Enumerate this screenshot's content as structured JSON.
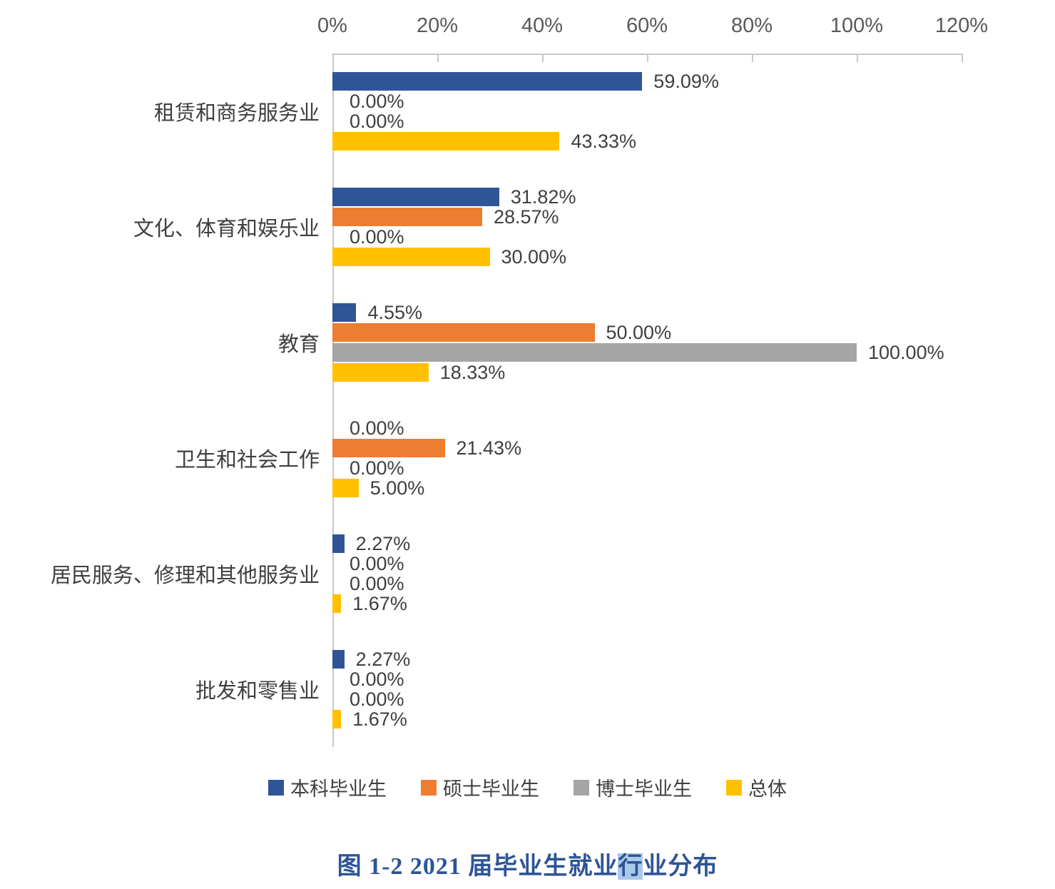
{
  "chart_data": {
    "type": "bar",
    "orientation": "horizontal",
    "title": "",
    "xlabel": "",
    "ylabel": "",
    "xlim": [
      0,
      120
    ],
    "x_tick_labels": [
      "0%",
      "20%",
      "40%",
      "60%",
      "80%",
      "100%",
      "120%"
    ],
    "grid": false,
    "legend_position": "bottom",
    "value_label_format": "0.00%",
    "categories": [
      "租赁和商务服务业",
      "文化、体育和娱乐业",
      "教育",
      "卫生和社会工作",
      "居民服务、修理和其他服务业",
      "批发和零售业"
    ],
    "series": [
      {
        "name": "本科毕业生",
        "color": "#2F5597",
        "values": [
          59.09,
          31.82,
          4.55,
          0.0,
          2.27,
          2.27
        ]
      },
      {
        "name": "硕士毕业生",
        "color": "#ED7D31",
        "values": [
          0.0,
          28.57,
          50.0,
          21.43,
          0.0,
          0.0
        ]
      },
      {
        "name": "博士毕业生",
        "color": "#A5A5A5",
        "values": [
          0.0,
          0.0,
          100.0,
          0.0,
          0.0,
          0.0
        ]
      },
      {
        "name": "总体",
        "color": "#FFC000",
        "values": [
          43.33,
          30.0,
          18.33,
          5.0,
          1.67,
          1.67
        ]
      }
    ],
    "axis_color": "#C9C9C9",
    "tick_label_color": "#595959",
    "data_label_color": "#3F3F3F"
  },
  "figure": {
    "caption": {
      "prefix": "图 1-2 2021 届毕业生就业",
      "highlight": "行",
      "suffix": "业分布",
      "text_color": "#2E5496",
      "highlight_color": "#A9C9E8"
    }
  }
}
